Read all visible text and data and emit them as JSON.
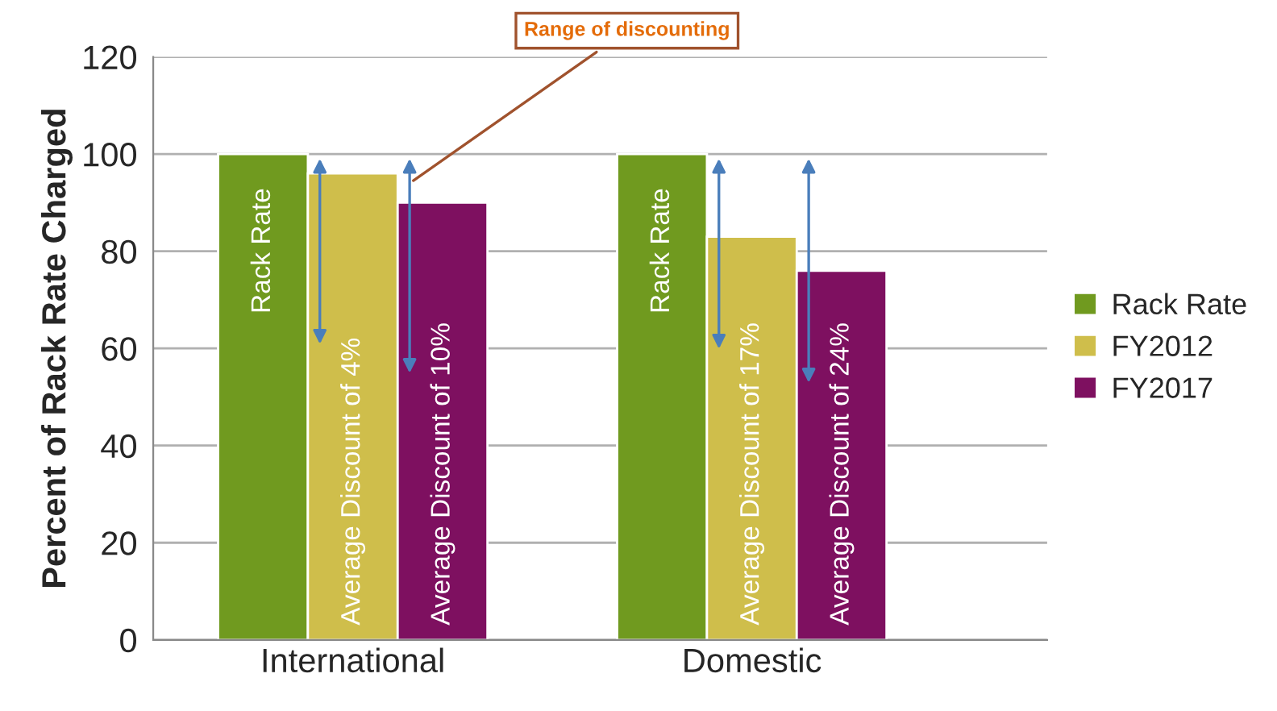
{
  "chart_data": {
    "type": "bar",
    "ylabel": "Percent of Rack Rate Charged",
    "categories": [
      "International",
      "Domestic"
    ],
    "series": [
      {
        "name": "Rack Rate",
        "color": "#709a1f",
        "values": [
          100,
          100
        ]
      },
      {
        "name": "FY2012",
        "color": "#cfbe4b",
        "values": [
          96,
          83
        ]
      },
      {
        "name": "FY2017",
        "color": "#7e1060",
        "values": [
          90,
          76
        ]
      }
    ],
    "ylim": [
      0,
      120
    ],
    "yticks": [
      0,
      20,
      40,
      60,
      80,
      100,
      120
    ],
    "grid": "y",
    "legend": "right",
    "annotations": [
      "Rack Rate",
      "Average Discount of 4%",
      "Average Discount of 10%",
      "Rack Rate",
      "Average Discount of 17%",
      "Average Discount of 24%",
      "Range of discounting"
    ]
  }
}
